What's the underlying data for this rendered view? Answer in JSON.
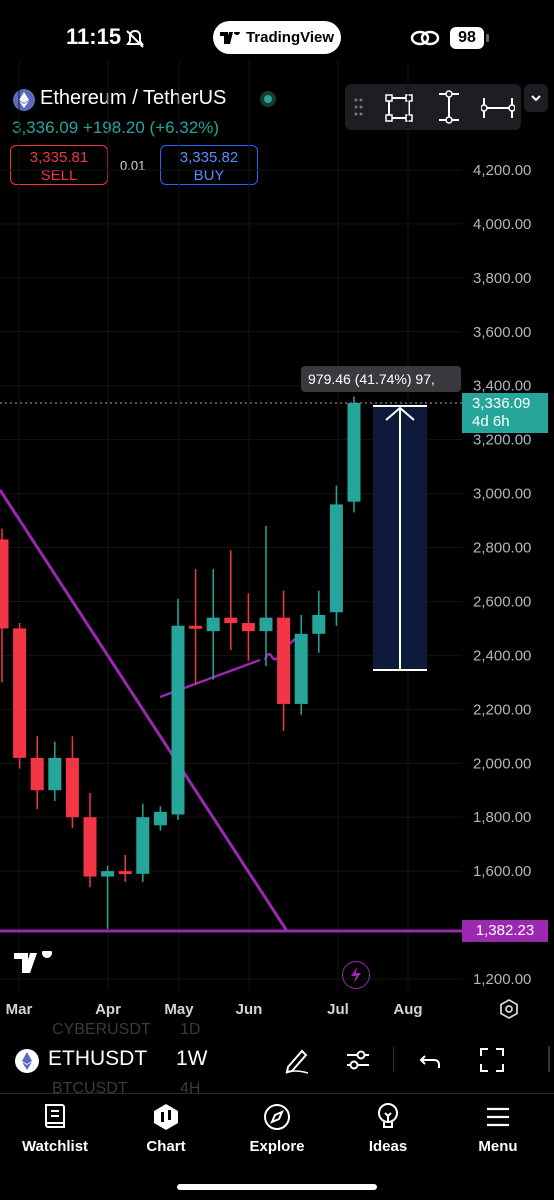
{
  "status_bar": {
    "time": "11:15",
    "app_name": "TradingView",
    "battery": "98",
    "icons": [
      "bell-slash-icon",
      "link-icon"
    ]
  },
  "header": {
    "symbol_title": "Ethereum / TetherUS",
    "price_line": "3,336.09 +198.20 (+6.32%)",
    "sell_price": "3,335.81",
    "sell_label": "SELL",
    "spread": "0.01",
    "buy_price": "3,335.82",
    "buy_label": "BUY",
    "colors": {
      "up": "#26a69a",
      "down": "#f23645",
      "buy": "#2962ff",
      "trendline": "#9c27b0"
    }
  },
  "drawing_toolbar": {
    "tools": [
      "rectangle-tool-icon",
      "price-range-icon",
      "date-range-icon",
      "chevron-down-icon"
    ]
  },
  "chart": {
    "price_tag": {
      "value": "3,336.09",
      "countdown": "4d 6h"
    },
    "line_tag": "1,382.23",
    "measure_label": "979.46 (41.74%) 97,",
    "x_labels": [
      "Mar",
      "Apr",
      "May",
      "Jun",
      "Jul",
      "Aug"
    ]
  },
  "chart_data": {
    "type": "candlestick",
    "y_ticks": [
      "4,200.00",
      "4,000.00",
      "3,800.00",
      "3,600.00",
      "3,400.00",
      "3,200.00",
      "3,000.00",
      "2,800.00",
      "2,600.00",
      "2,400.00",
      "2,200.00",
      "2,000.00",
      "1,800.00",
      "1,600.00",
      "1,200.00"
    ],
    "x_ticks": [
      "Mar",
      "Apr",
      "May",
      "Jun",
      "Jul",
      "Aug"
    ],
    "ylim": [
      1150,
      4330
    ],
    "candles": [
      {
        "o": 2830,
        "h": 2870,
        "l": 2300,
        "c": 2500
      },
      {
        "o": 2500,
        "h": 2520,
        "l": 1980,
        "c": 2020
      },
      {
        "o": 2020,
        "h": 2100,
        "l": 1830,
        "c": 1900
      },
      {
        "o": 1900,
        "h": 2080,
        "l": 1860,
        "c": 2020
      },
      {
        "o": 2020,
        "h": 2100,
        "l": 1760,
        "c": 1800
      },
      {
        "o": 1800,
        "h": 1890,
        "l": 1540,
        "c": 1580
      },
      {
        "o": 1580,
        "h": 1620,
        "l": 1385,
        "c": 1600
      },
      {
        "o": 1600,
        "h": 1660,
        "l": 1560,
        "c": 1590
      },
      {
        "o": 1590,
        "h": 1850,
        "l": 1560,
        "c": 1800
      },
      {
        "o": 1770,
        "h": 1840,
        "l": 1750,
        "c": 1820
      },
      {
        "o": 1810,
        "h": 2610,
        "l": 1790,
        "c": 2510
      },
      {
        "o": 2510,
        "h": 2720,
        "l": 2290,
        "c": 2500
      },
      {
        "o": 2490,
        "h": 2720,
        "l": 2310,
        "c": 2540
      },
      {
        "o": 2540,
        "h": 2790,
        "l": 2420,
        "c": 2520
      },
      {
        "o": 2520,
        "h": 2630,
        "l": 2380,
        "c": 2490
      },
      {
        "o": 2490,
        "h": 2880,
        "l": 2360,
        "c": 2540
      },
      {
        "o": 2540,
        "h": 2640,
        "l": 2120,
        "c": 2220
      },
      {
        "o": 2220,
        "h": 2550,
        "l": 2180,
        "c": 2480
      },
      {
        "o": 2480,
        "h": 2640,
        "l": 2410,
        "c": 2550
      },
      {
        "o": 2560,
        "h": 3030,
        "l": 2510,
        "c": 2960
      },
      {
        "o": 2970,
        "h": 3360,
        "l": 2930,
        "c": 3336.09
      }
    ],
    "trendline_label": "1,382.23",
    "measure": {
      "from": 2356.63,
      "to": 3336.09,
      "label": "979.46 (41.74%) 97,"
    }
  },
  "toolbar": {
    "symbol": "ETHUSDT",
    "interval": "1W",
    "ghost_symbols": [
      "CYBERUSDT",
      "BTCUSDT"
    ],
    "ghost_intervals": [
      "1D",
      "4H"
    ]
  },
  "tabs": [
    {
      "label": "Watchlist",
      "icon": "book-icon"
    },
    {
      "label": "Chart",
      "icon": "chart-icon"
    },
    {
      "label": "Explore",
      "icon": "compass-icon"
    },
    {
      "label": "Ideas",
      "icon": "lightbulb-icon"
    },
    {
      "label": "Menu",
      "icon": "menu-icon"
    }
  ]
}
